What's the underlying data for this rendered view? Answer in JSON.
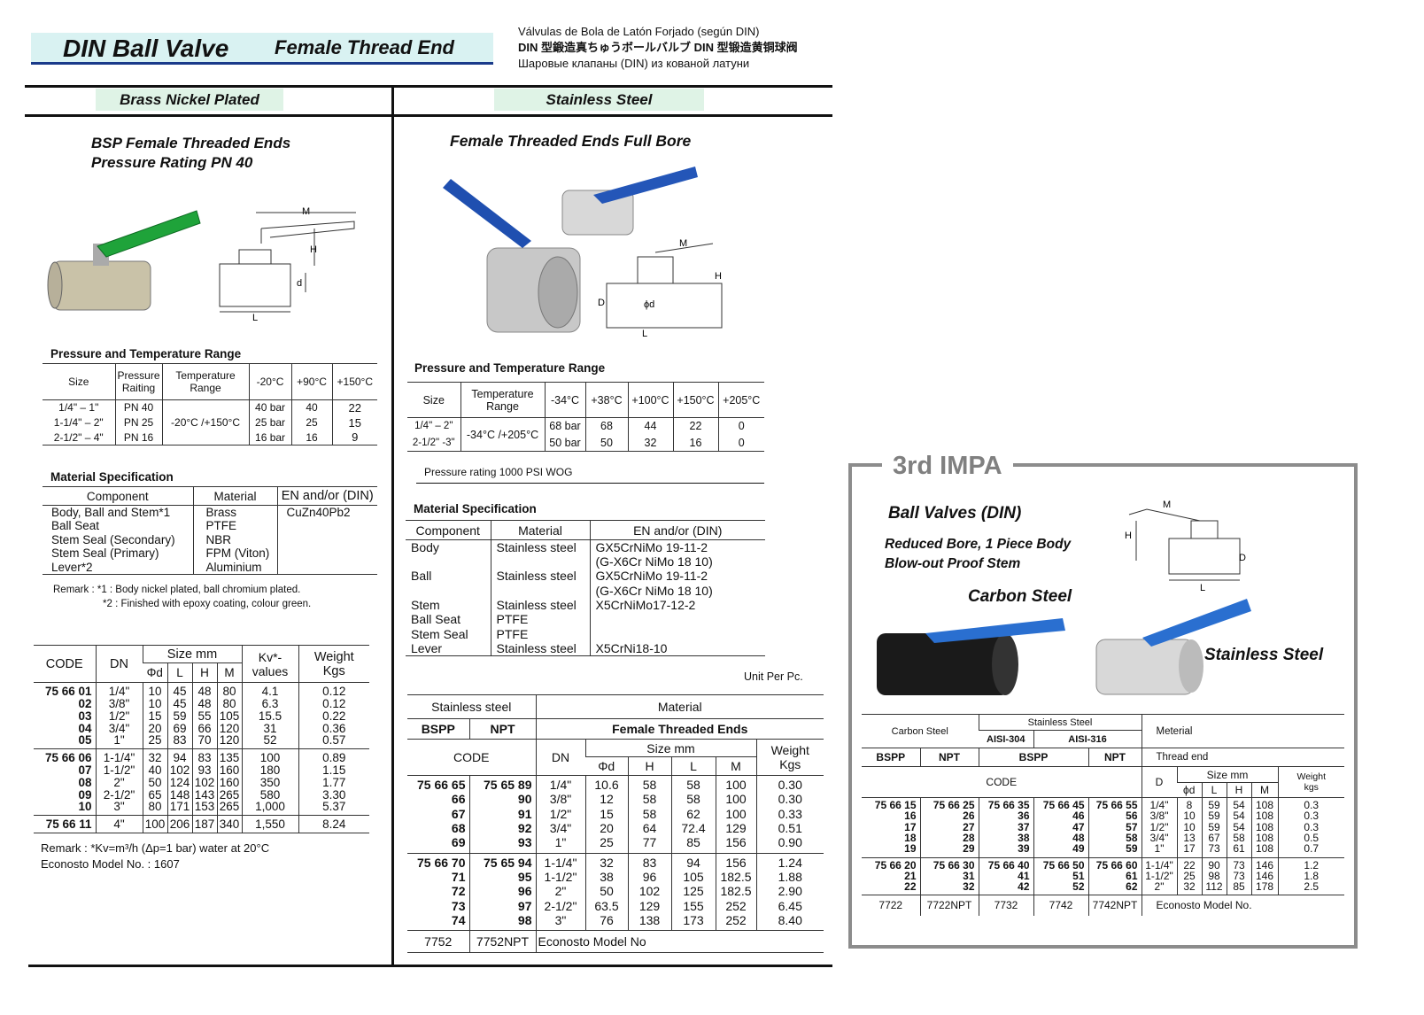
{
  "header": {
    "title": "DIN Ball Valve",
    "subtitle": "Female Thread End",
    "lang": [
      "Válvulas de Bola de Latón Forjado (según DIN)",
      "DIN 型鍛造真ちゅうボールバルブ  DIN 型锻造黄铜球阀",
      "Шаровые клапаны (DIN) из кованой латуни"
    ],
    "banner_color": "#d9f2f2",
    "accent": "#1a3a8a"
  },
  "left": {
    "badge": "Brass Nickel Plated",
    "badge_color": "#dff3e6",
    "heading": [
      "BSP Female Threaded Ends",
      "Pressure Rating PN 40"
    ],
    "diagram_labels": {
      "m": "M",
      "h": "H",
      "d": "d",
      "l": "L"
    },
    "pressure": {
      "title": "Pressure and Temperature Range",
      "headers": [
        "Size",
        "Pressure",
        "Raiting",
        "Temperature",
        "Range",
        "-20°C",
        "+90°C",
        "+150°C"
      ],
      "temp_range": "-20°C /+150°C",
      "rows": [
        [
          "1/4\" – 1\"",
          "PN 40",
          "40 bar",
          "40",
          "22"
        ],
        [
          "1-1/4\" – 2\"",
          "PN 25",
          "25 bar",
          "25",
          "15"
        ],
        [
          "2-1/2\" – 4\"",
          "PN 16",
          "16 bar",
          "16",
          "9"
        ]
      ]
    },
    "material": {
      "title": "Material Specification",
      "headers": [
        "Component",
        "Material",
        "EN and/or (DIN)"
      ],
      "rows": [
        [
          "Body, Ball and Stem*1",
          "Brass",
          "CuZn40Pb2"
        ],
        [
          "Ball Seat",
          "PTFE",
          ""
        ],
        [
          "Stem Seal (Secondary)",
          "NBR",
          ""
        ],
        [
          "Stem Seal (Primary)",
          "FPM (Viton)",
          ""
        ],
        [
          "Lever*2",
          "Aluminium",
          ""
        ]
      ],
      "remarks": [
        "Remark :  *1 : Body nickel plated, ball chromium plated.",
        "*2 : Finished with epoxy coating, colour green."
      ]
    },
    "codes": {
      "headers": {
        "code": "CODE",
        "dn": "DN",
        "size": "Size mm",
        "d": "Φd",
        "l": "L",
        "h": "H",
        "m": "M",
        "kv": "Kv*-",
        "kv2": "values",
        "w": "Weight",
        "w2": "Kgs"
      },
      "groups": [
        [
          [
            "75 66 01",
            "1/4\"",
            "10",
            "45",
            "48",
            "80",
            "4.1",
            "0.12"
          ],
          [
            "02",
            "3/8\"",
            "10",
            "45",
            "48",
            "80",
            "6.3",
            "0.12"
          ],
          [
            "03",
            "1/2\"",
            "15",
            "59",
            "55",
            "105",
            "15.5",
            "0.22"
          ],
          [
            "04",
            "3/4\"",
            "20",
            "69",
            "66",
            "120",
            "31",
            "0.36"
          ],
          [
            "05",
            "1\"",
            "25",
            "83",
            "70",
            "120",
            "52",
            "0.57"
          ]
        ],
        [
          [
            "75 66 06",
            "1-1/4\"",
            "32",
            "94",
            "83",
            "135",
            "100",
            "0.89"
          ],
          [
            "07",
            "1-1/2\"",
            "40",
            "102",
            "93",
            "160",
            "180",
            "1.15"
          ],
          [
            "08",
            "2\"",
            "50",
            "124",
            "102",
            "160",
            "350",
            "1.77"
          ],
          [
            "09",
            "2-1/2\"",
            "65",
            "148",
            "143",
            "265",
            "580",
            "3.30"
          ],
          [
            "10",
            "3\"",
            "80",
            "171",
            "153",
            "265",
            "1,000",
            "5.37"
          ]
        ],
        [
          [
            "75 66 11",
            "4\"",
            "100",
            "206",
            "187",
            "340",
            "1,550",
            "8.24"
          ]
        ]
      ],
      "remark": "Remark : *Kv=m³/h (Δp=1 bar) water at 20°C",
      "model": "Econosto Model No. : 1607"
    }
  },
  "middle": {
    "badge": "Stainless Steel",
    "badge_color": "#dff3e6",
    "heading": "Female Threaded Ends Full Bore",
    "diagram_labels": {
      "m": "M",
      "h": "H",
      "d": "D",
      "phid": "ϕd",
      "l": "L"
    },
    "pressure": {
      "title": "Pressure and Temperature Range",
      "headers": [
        "Size",
        "Temperature",
        "Range",
        "-34°C",
        "+38°C",
        "+100°C",
        "+150°C",
        "+205°C"
      ],
      "temp_range": "-34°C /+205°C",
      "rows": [
        [
          "1/4\" – 2\"",
          "68 bar",
          "68",
          "44",
          "22",
          "0"
        ],
        [
          "2-1/2\" -3\"",
          "50 bar",
          "50",
          "32",
          "16",
          "0"
        ]
      ],
      "note": "Pressure rating 1000 PSI WOG"
    },
    "material": {
      "title": "Material Specification",
      "headers": [
        "Component",
        "Material",
        "EN and/or (DIN)"
      ],
      "rows": [
        [
          "Body",
          "Stainless steel",
          "GX5CrNiMo 19-11-2"
        ],
        [
          "",
          "",
          "(G-X6Cr NiMo 18 10)"
        ],
        [
          "Ball",
          "Stainless steel",
          "GX5CrNiMo 19-11-2"
        ],
        [
          "",
          "",
          "(G-X6Cr NiMo 18 10)"
        ],
        [
          "Stem",
          "Stainless steel",
          "X5CrNiMo17-12-2"
        ],
        [
          "Ball Seat",
          "PTFE",
          ""
        ],
        [
          "Stem Seal",
          "PTFE",
          ""
        ],
        [
          "Lever",
          "Stainless steel",
          "X5CrNi18-10"
        ]
      ]
    },
    "unit": "Unit Per Pc.",
    "codes": {
      "headers": {
        "ss": "Stainless steel",
        "material": "Material",
        "bspp": "BSPP",
        "npt": "NPT",
        "fte": "Female Threaded Ends",
        "code": "CODE",
        "dn": "DN",
        "size": "Size mm",
        "d": "Φd",
        "h": "H",
        "l": "L",
        "m": "M",
        "w": "Weight",
        "w2": "Kgs"
      },
      "groups": [
        [
          [
            "75 66 65",
            "75 65 89",
            "1/4\"",
            "10.6",
            "58",
            "58",
            "100",
            "0.30"
          ],
          [
            "66",
            "90",
            "3/8\"",
            "12",
            "58",
            "58",
            "100",
            "0.30"
          ],
          [
            "67",
            "91",
            "1/2\"",
            "15",
            "58",
            "62",
            "100",
            "0.33"
          ],
          [
            "68",
            "92",
            "3/4\"",
            "20",
            "64",
            "72.4",
            "129",
            "0.51"
          ],
          [
            "69",
            "93",
            "1\"",
            "25",
            "77",
            "85",
            "156",
            "0.90"
          ]
        ],
        [
          [
            "75 66 70",
            "75 65 94",
            "1-1/4\"",
            "32",
            "83",
            "94",
            "156",
            "1.24"
          ],
          [
            "71",
            "95",
            "1-1/2\"",
            "38",
            "96",
            "105",
            "182.5",
            "1.88"
          ],
          [
            "72",
            "96",
            "2\"",
            "50",
            "102",
            "125",
            "182.5",
            "2.90"
          ],
          [
            "73",
            "97",
            "2-1/2\"",
            "63.5",
            "129",
            "155",
            "252",
            "6.45"
          ],
          [
            "74",
            "98",
            "3\"",
            "76",
            "138",
            "173",
            "252",
            "8.40"
          ]
        ]
      ],
      "footer": [
        "7752",
        "7752NPT",
        "Econosto Model No"
      ]
    }
  },
  "impa": {
    "label": "3rd IMPA",
    "border_color": "#8c8c8c",
    "title": "Ball Valves (DIN)",
    "sub": [
      "Reduced Bore, 1 Piece Body",
      "Blow-out Proof Stem"
    ],
    "carbon": "Carbon Steel",
    "stainless": "Stainless Steel",
    "diagram_labels": {
      "m": "M",
      "h": "H",
      "d": "D",
      "l": "L"
    },
    "headers": {
      "cs": "Carbon Steel",
      "ss": "Stainless Steel",
      "a304": "AISI-304",
      "a316": "AISI-316",
      "material": "Meterial",
      "bspp": "BSPP",
      "npt": "NPT",
      "bspp2": "BSPP",
      "npt2": "NPT",
      "thread": "Thread end",
      "code": "CODE",
      "D": "D",
      "size": "Size mm",
      "d": "ϕd",
      "l": "L",
      "h": "H",
      "m": "M",
      "w": "Weight",
      "w2": "kgs"
    },
    "groups": [
      [
        [
          "75 66 15",
          "75 66 25",
          "75 66 35",
          "75 66 45",
          "75 66 55",
          "1/4\"",
          "8",
          "59",
          "54",
          "108",
          "0.3"
        ],
        [
          "16",
          "26",
          "36",
          "46",
          "56",
          "3/8\"",
          "10",
          "59",
          "54",
          "108",
          "0.3"
        ],
        [
          "17",
          "27",
          "37",
          "47",
          "57",
          "1/2\"",
          "10",
          "59",
          "54",
          "108",
          "0.3"
        ],
        [
          "18",
          "28",
          "38",
          "48",
          "58",
          "3/4\"",
          "13",
          "67",
          "58",
          "108",
          "0.5"
        ],
        [
          "19",
          "29",
          "39",
          "49",
          "59",
          "1\"",
          "17",
          "73",
          "61",
          "108",
          "0.7"
        ]
      ],
      [
        [
          "75 66 20",
          "75 66 30",
          "75 66 40",
          "75 66 50",
          "75 66 60",
          "1-1/4\"",
          "22",
          "90",
          "73",
          "146",
          "1.2"
        ],
        [
          "21",
          "31",
          "41",
          "51",
          "61",
          "1-1/2\"",
          "25",
          "98",
          "73",
          "146",
          "1.8"
        ],
        [
          "22",
          "32",
          "42",
          "52",
          "62",
          "2\"",
          "32",
          "112",
          "85",
          "178",
          "2.5"
        ]
      ]
    ],
    "footer": [
      "7722",
      "7722NPT",
      "7732",
      "7742",
      "7742NPT",
      "Econosto Model No."
    ]
  }
}
